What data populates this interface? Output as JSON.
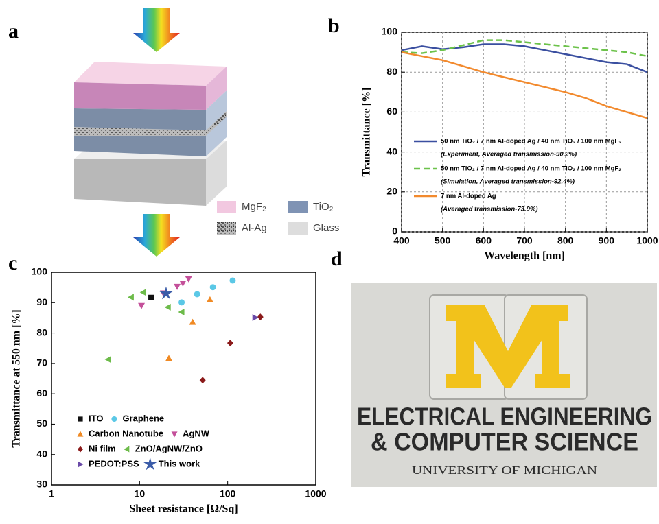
{
  "panel_labels": [
    "a",
    "b",
    "c",
    "d"
  ],
  "diagram": {
    "legend": [
      "MgF₂",
      "TiO₂",
      "Al-Ag",
      "Glass"
    ]
  },
  "photo": {
    "lines": [
      "ELECTRICAL ENGINEERING",
      "& COMPUTER SCIENCE",
      "UNIVERSITY OF MICHIGAN"
    ]
  },
  "chart_data": [
    {
      "type": "line",
      "xlabel": "Wavelength [nm]",
      "ylabel": "Transmittance [%]",
      "x": [
        400,
        450,
        500,
        550,
        600,
        650,
        700,
        750,
        800,
        850,
        900,
        950,
        1000
      ],
      "xlim": [
        400,
        1000
      ],
      "ylim": [
        0,
        100
      ],
      "xticks": [
        400,
        500,
        600,
        700,
        800,
        900,
        1000
      ],
      "yticks": [
        0,
        20,
        40,
        60,
        80,
        100
      ],
      "grid": true,
      "series": [
        {
          "name": "50 nm TiO₂ / 7 nm Al-doped Ag / 40 nm TiO₂ / 100 nm MgF₂",
          "note": "(Experiment, Averaged transmission-90.2%)",
          "color": "#3a4fa0",
          "style": "solid",
          "values": [
            91,
            93,
            91.5,
            92.5,
            94,
            94,
            93,
            91,
            89,
            87,
            85,
            84,
            80
          ]
        },
        {
          "name": "50 nm TiO₂ / 7 nm Al-doped Ag / 40 nm TiO₂ / 100 nm MgF₂",
          "note": "(Simulation, Averaged transmission-92.4%)",
          "color": "#6cc24a",
          "style": "dashed",
          "values": [
            90,
            89.5,
            91,
            93.5,
            96,
            96,
            95,
            94,
            93,
            92,
            91,
            90,
            88
          ]
        },
        {
          "name": "7 nm Al-doped Ag",
          "note": "(Averaged transmission-73.9%)",
          "color": "#f28a2e",
          "style": "solid",
          "values": [
            90,
            88,
            86,
            83,
            80,
            77.5,
            75,
            72.5,
            70,
            67,
            63,
            60,
            57
          ]
        }
      ]
    },
    {
      "type": "scatter",
      "xlabel": "Sheet resistance [Ω/Sq]",
      "ylabel": "Transmittance at 550 nm [%]",
      "xscale": "log",
      "xlim": [
        1,
        1000
      ],
      "ylim": [
        30,
        100
      ],
      "xticks": [
        1,
        10,
        100,
        1000
      ],
      "yticks": [
        30,
        40,
        50,
        60,
        70,
        80,
        90,
        100
      ],
      "series": [
        {
          "name": "ITO",
          "color": "#111111",
          "marker": "square",
          "x": [
            13.5
          ],
          "values": [
            91.7
          ]
        },
        {
          "name": "Graphene",
          "color": "#5bc8e6",
          "marker": "circle",
          "x": [
            30,
            45,
            68,
            114
          ],
          "values": [
            90.1,
            92.8,
            95.1,
            97.3
          ]
        },
        {
          "name": "Carbon Nanotube",
          "color": "#f08a24",
          "marker": "triangle-up",
          "x": [
            21.5,
            40,
            63
          ],
          "values": [
            71.7,
            83.6,
            91.0
          ]
        },
        {
          "name": "AgNW",
          "color": "#c4509a",
          "marker": "triangle-down",
          "x": [
            10.5,
            18.6,
            26.7,
            31,
            36
          ],
          "values": [
            89.0,
            93.1,
            95.3,
            96.4,
            97.8
          ]
        },
        {
          "name": "Ni film",
          "color": "#8b1a1a",
          "marker": "diamond",
          "x": [
            52,
            107,
            235
          ],
          "values": [
            64.5,
            76.7,
            85.3
          ]
        },
        {
          "name": "ZnO/AgNW/ZnO",
          "color": "#6dbb4a",
          "marker": "triangle-left",
          "x": [
            4.4,
            8,
            11,
            21,
            30
          ],
          "values": [
            71.3,
            91.8,
            93.4,
            88.5,
            86.9
          ]
        },
        {
          "name": "PEDOT:PSS",
          "color": "#6a4aa8",
          "marker": "triangle-right",
          "x": [
            205
          ],
          "values": [
            85.1
          ]
        },
        {
          "name": "This work",
          "color": "#3a5ba8",
          "marker": "star",
          "x": [
            20
          ],
          "values": [
            93
          ]
        }
      ]
    }
  ]
}
